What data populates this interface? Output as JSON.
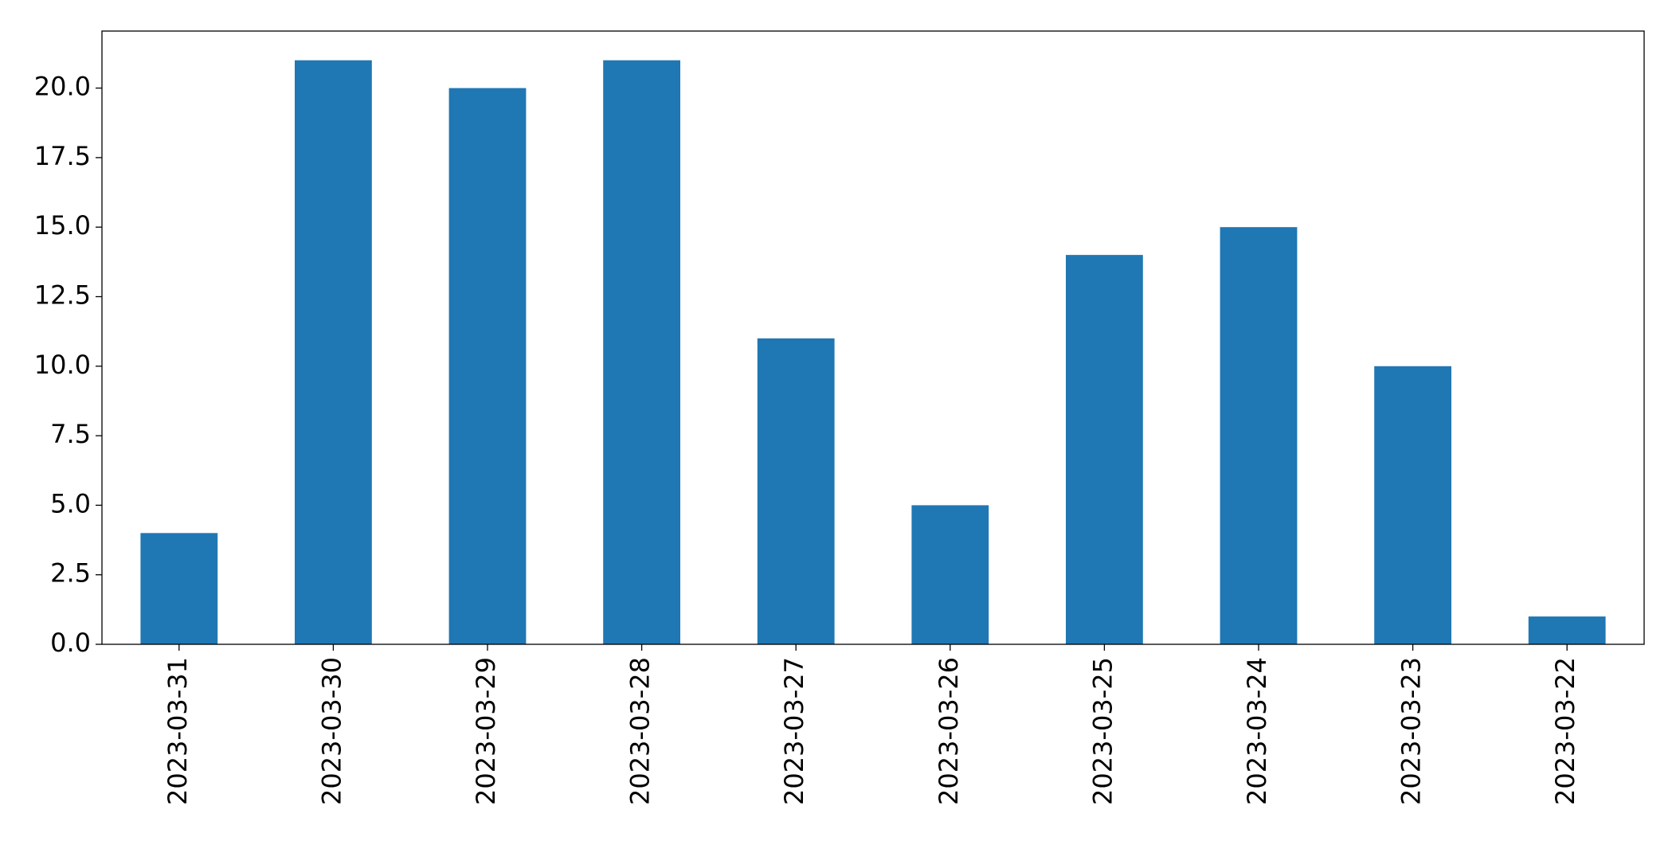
{
  "chart_data": {
    "type": "bar",
    "categories": [
      "2023-03-31",
      "2023-03-30",
      "2023-03-29",
      "2023-03-28",
      "2023-03-27",
      "2023-03-26",
      "2023-03-25",
      "2023-03-24",
      "2023-03-23",
      "2023-03-22"
    ],
    "values": [
      4,
      21,
      20,
      21,
      11,
      5,
      14,
      15,
      10,
      1
    ],
    "color": "#1f77b4",
    "ylim": [
      0,
      22.05
    ],
    "yticks": [
      {
        "value": 0,
        "label": "0.0"
      },
      2.5,
      {
        "value": 5,
        "label": "5.0"
      },
      7.5,
      {
        "value": 10,
        "label": "10.0"
      },
      12.5,
      {
        "value": 15,
        "label": "15.0"
      },
      17.5,
      {
        "value": 20,
        "label": "20.0"
      }
    ],
    "grid": false
  }
}
